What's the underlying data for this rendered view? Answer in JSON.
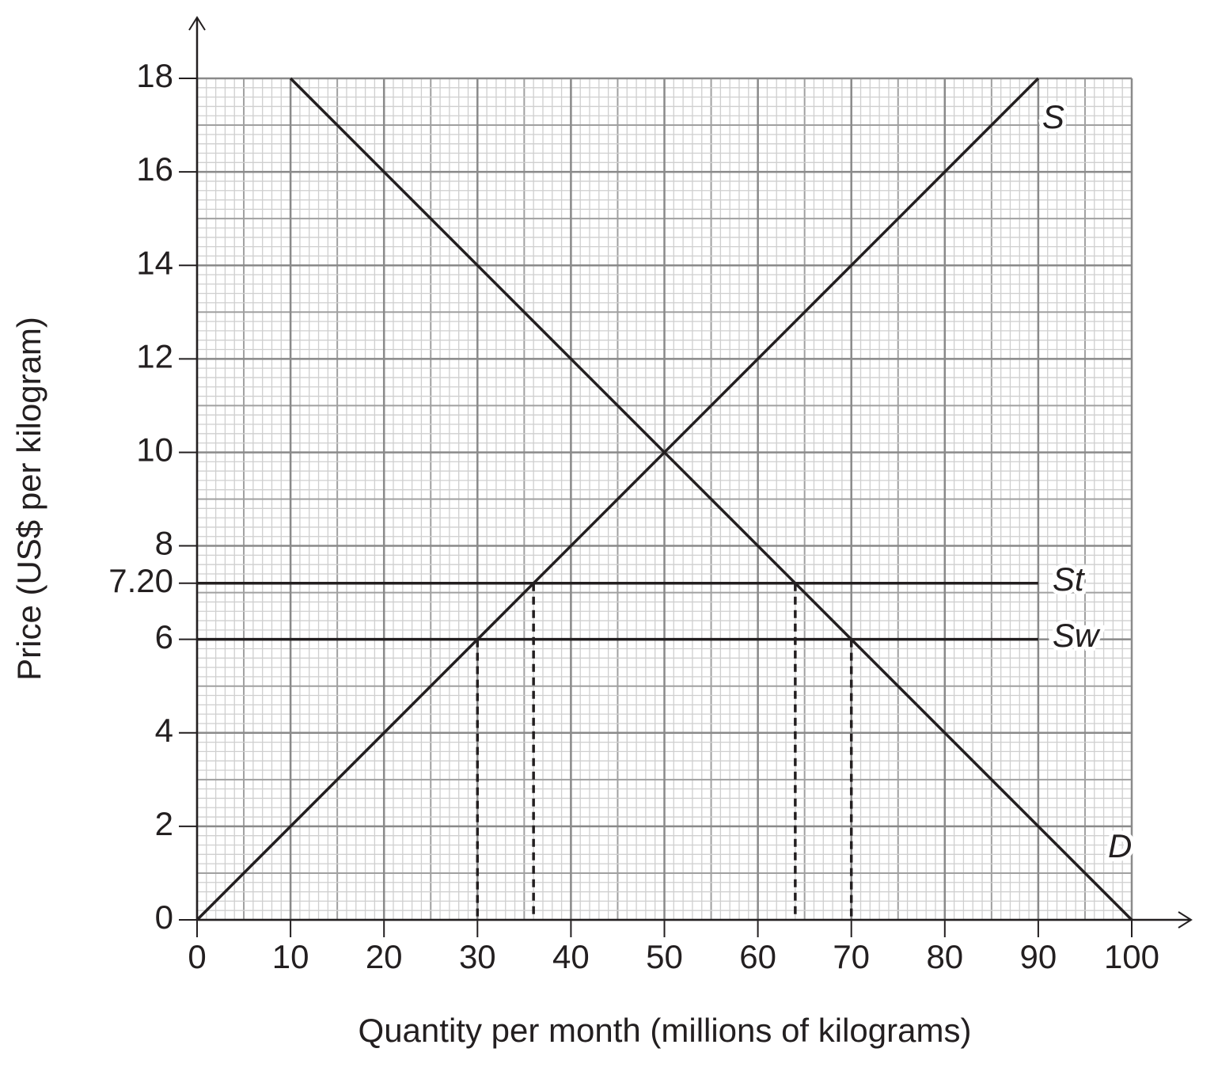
{
  "chart_data": {
    "type": "line",
    "x_label": "Quantity per month (millions of kilograms)",
    "y_label": "Price (US$ per kilogram)",
    "xlim": [
      0,
      100
    ],
    "ylim": [
      0,
      18
    ],
    "xticks": [
      0,
      10,
      20,
      30,
      40,
      50,
      60,
      70,
      80,
      90,
      100
    ],
    "yticks": [
      0,
      2,
      4,
      6,
      {
        "value": 7.2,
        "label": "7.20"
      },
      8,
      10,
      12,
      14,
      16,
      18
    ],
    "grid": true,
    "series": [
      {
        "name": "S",
        "color": "#231f20",
        "x": [
          0,
          90
        ],
        "values": [
          0,
          18
        ]
      },
      {
        "name": "D",
        "color": "#231f20",
        "x": [
          10,
          100
        ],
        "values": [
          18,
          0
        ]
      },
      {
        "name": "St",
        "color": "#231f20",
        "x": [
          0,
          90
        ],
        "values": [
          7.2,
          7.2
        ]
      },
      {
        "name": "Sw",
        "color": "#231f20",
        "x": [
          0,
          90
        ],
        "values": [
          6,
          6
        ]
      }
    ],
    "guides": [
      {
        "x": 30,
        "y": 6
      },
      {
        "x": 36,
        "y": 7.2
      },
      {
        "x": 64,
        "y": 7.2
      },
      {
        "x": 70,
        "y": 6
      }
    ]
  }
}
